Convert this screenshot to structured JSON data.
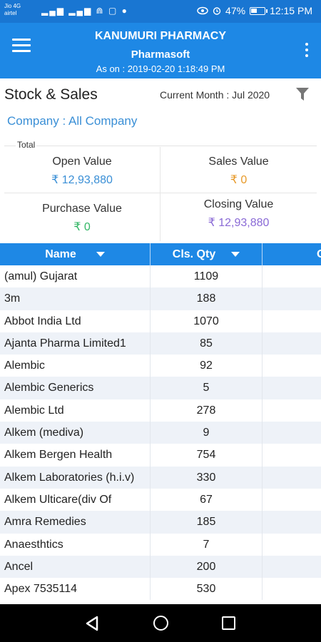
{
  "status_bar": {
    "carrier_line1": "Jio 4G",
    "carrier_line2": "airtel",
    "signal_icons": "▂▄▆ ▂▄▆ ⋒ ▢ ●",
    "battery_percent": "47%",
    "battery_level": 0.47,
    "time": "12:15 PM",
    "eye_icon": "eye-icon",
    "alarm_icon": "alarm-icon"
  },
  "app_bar": {
    "title": "KANUMURI PHARMACY",
    "subtitle": "Pharmasoft",
    "as_on": "As on : 2019-02-20 1:18:49 PM"
  },
  "header": {
    "section_title": "Stock & Sales",
    "current_month": "Current Month : Jul 2020",
    "company_filter": "Company : All Company"
  },
  "totals": {
    "label": "Total",
    "open_value_label": "Open Value",
    "open_value": "₹ 12,93,880",
    "sales_value_label": "Sales Value",
    "sales_value": "₹ 0",
    "purchase_value_label": "Purchase Value",
    "purchase_value": "₹ 0",
    "closing_value_label": "Closing Value",
    "closing_value": "₹ 12,93,880"
  },
  "colors": {
    "primary": "#1e88e5",
    "open_value": "#3a8fd6",
    "sales_value": "#e79a2a",
    "purchase_value": "#33b766",
    "closing_value": "#8a6ad6"
  },
  "table": {
    "columns": [
      "Name",
      "Cls. Qty",
      "O"
    ],
    "rows": [
      {
        "name": "(amul) Gujarat",
        "qty": "1109"
      },
      {
        "name": "3m",
        "qty": "188"
      },
      {
        "name": "Abbot India Ltd",
        "qty": "1070"
      },
      {
        "name": "Ajanta Pharma Limited1",
        "qty": "85"
      },
      {
        "name": "Alembic",
        "qty": "92"
      },
      {
        "name": "Alembic Generics",
        "qty": "5"
      },
      {
        "name": "Alembic Ltd",
        "qty": "278"
      },
      {
        "name": "Alkem (mediva)",
        "qty": "9"
      },
      {
        "name": "Alkem Bergen Health",
        "qty": "754"
      },
      {
        "name": "Alkem Laboratories (h.i.v)",
        "qty": "330"
      },
      {
        "name": "Alkem Ulticare(div Of",
        "qty": "67"
      },
      {
        "name": "Amra Remedies",
        "qty": "185"
      },
      {
        "name": "Anaesthtics",
        "qty": "7"
      },
      {
        "name": "Ancel",
        "qty": "200"
      },
      {
        "name": "Apex  7535114",
        "qty": "530"
      }
    ]
  }
}
